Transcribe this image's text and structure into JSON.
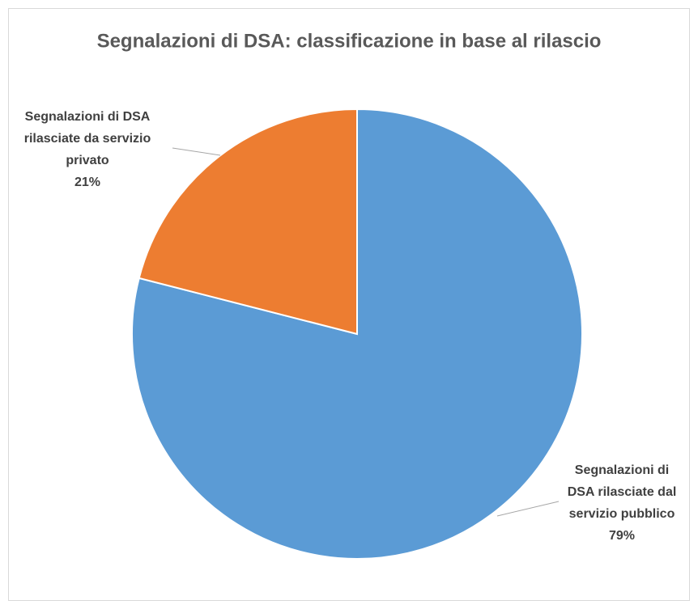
{
  "chart_data": {
    "type": "pie",
    "title": "Segnalazioni di DSA: classificazione in base al rilascio",
    "categories": [
      "Segnalazioni di DSA rilasciate dal servizio pubblico",
      "Segnalazioni di DSA rilasciate da servizio privato"
    ],
    "values": [
      79,
      21
    ],
    "value_labels": [
      "79%",
      "21%"
    ],
    "colors": [
      "#5b9bd5",
      "#ed7d31"
    ]
  }
}
